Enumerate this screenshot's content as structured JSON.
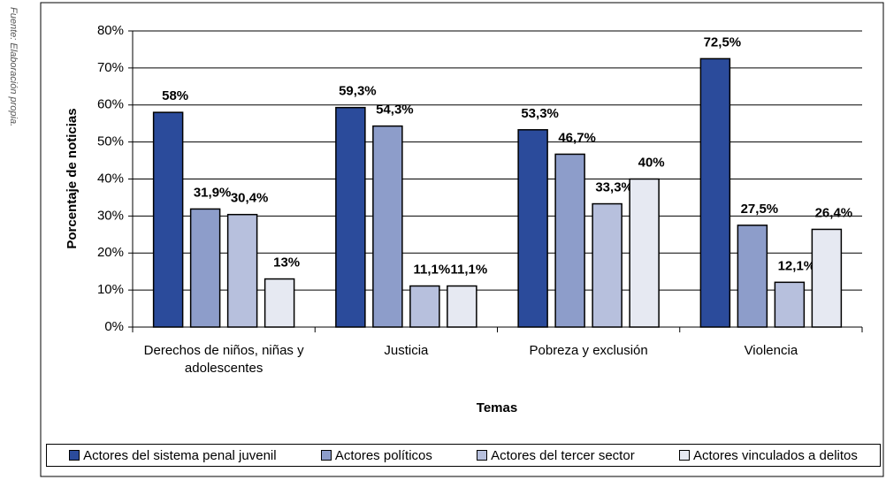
{
  "chart_data": {
    "type": "bar",
    "source_note": "Fuente: Elaboración propia.",
    "xlabel": "Temas",
    "ylabel": "Porcentaje de noticias",
    "categories": [
      "Derechos de niños, niñas y adolescentes",
      "Justicia",
      "Pobreza y exclusión",
      "Violencia"
    ],
    "series": [
      {
        "name": "Actores del sistema penal juvenil",
        "color": "#2b4b9b",
        "values": [
          58,
          59.3,
          53.3,
          72.5
        ],
        "value_labels": [
          "58%",
          "59,3%",
          "53,3%",
          "72,5%"
        ]
      },
      {
        "name": "Actores políticos",
        "color": "#8d9dca",
        "values": [
          31.9,
          54.3,
          46.7,
          27.5
        ],
        "value_labels": [
          "31,9%",
          "54,3%",
          "46,7%",
          "27,5%"
        ]
      },
      {
        "name": "Actores del tercer sector",
        "color": "#b7c0dd",
        "values": [
          30.4,
          11.1,
          33.3,
          12.1
        ],
        "value_labels": [
          "30,4%",
          "11,1%",
          "33,3%",
          "12,1%"
        ]
      },
      {
        "name": "Actores vinculados a delitos",
        "color": "#e6e9f2",
        "values": [
          13,
          11.1,
          40,
          26.4
        ],
        "value_labels": [
          "13%",
          "11,1%",
          "40%",
          "26,4%"
        ]
      }
    ],
    "ylim": [
      0,
      80
    ],
    "yticks": [
      {
        "value": 0,
        "label": "0%"
      },
      {
        "value": 10,
        "label": "10%"
      },
      {
        "value": 20,
        "label": "20%"
      },
      {
        "value": 30,
        "label": "30%"
      },
      {
        "value": 40,
        "label": "40%"
      },
      {
        "value": 50,
        "label": "50%"
      },
      {
        "value": 60,
        "label": "60%"
      },
      {
        "value": 70,
        "label": "70%"
      },
      {
        "value": 80,
        "label": "80%"
      }
    ],
    "grid": true
  }
}
